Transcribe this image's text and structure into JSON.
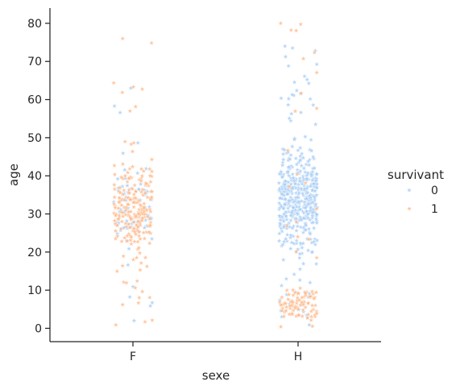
{
  "chart_data": {
    "type": "scatter",
    "subtype": "stripplot",
    "title": "",
    "xlabel": "sexe",
    "ylabel": "age",
    "categories": [
      "F",
      "H"
    ],
    "ylim": [
      -3.5,
      84
    ],
    "yticks": [
      0,
      10,
      20,
      30,
      40,
      50,
      60,
      70,
      80
    ],
    "grid": false,
    "marker": "star",
    "legend": {
      "title": "survivant",
      "placement": "right",
      "entries": [
        {
          "label": "0",
          "color": "#a1c9f4"
        },
        {
          "label": "1",
          "color": "#ffb482"
        }
      ]
    },
    "series": [
      {
        "hue": "0",
        "color": "#a1c9f4",
        "groups": {
          "F": {
            "count": 81,
            "age_range": [
              2,
              63
            ],
            "dense_range": [
              18,
              45
            ]
          },
          "H": {
            "count": 468,
            "age_range": [
              0.9,
              74
            ],
            "dense_range": [
              18,
              50
            ]
          }
        }
      },
      {
        "hue": "1",
        "color": "#ffb482",
        "groups": {
          "F": {
            "count": 233,
            "age_range": [
              0.9,
              76
            ],
            "dense_range": [
              16,
              48
            ]
          },
          "H": {
            "count": 109,
            "age_range": [
              0.4,
              80
            ],
            "dense_range": [
              0.4,
              12
            ]
          }
        }
      }
    ]
  }
}
